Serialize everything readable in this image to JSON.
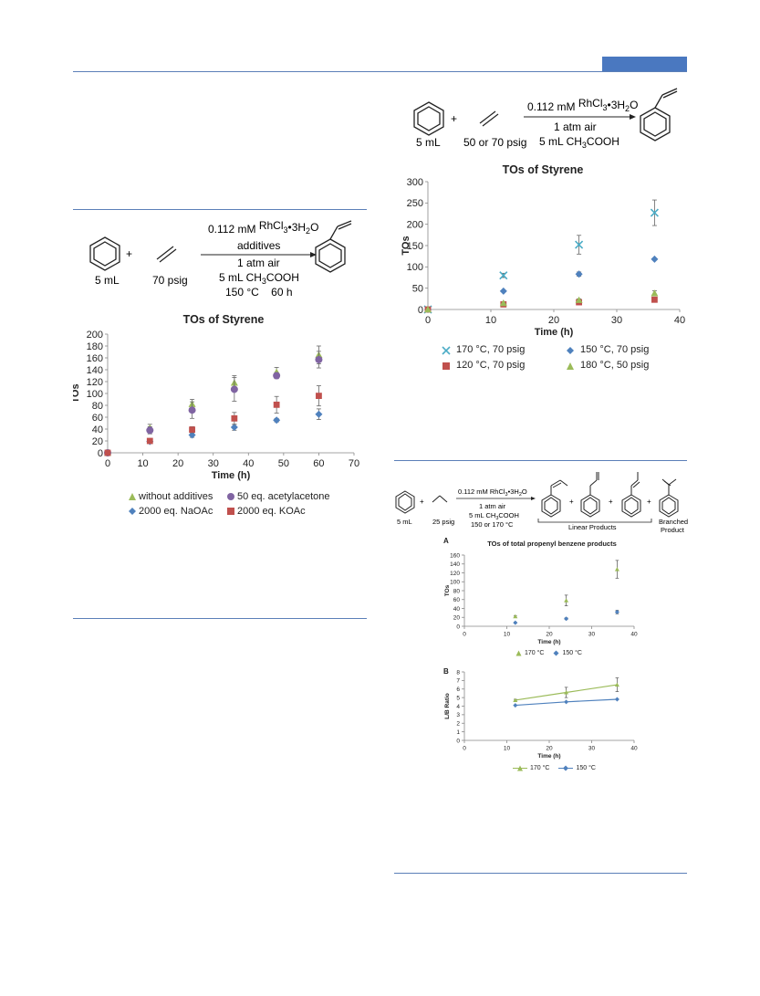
{
  "colors": {
    "rule": "#5b7fb8",
    "header_block": "#4a78c0"
  },
  "scheme_left": {
    "benzene_amount": "5 mL",
    "ethylene_amount": "70 psig",
    "plus": "+",
    "cond_catalyst_prefix": "0.112 mM ",
    "cond_catalyst_rh": "RhCl",
    "cond_catalyst_sub3": "3",
    "cond_catalyst_mid": "•3H",
    "cond_catalyst_sub2": "2",
    "cond_catalyst_o": "O",
    "cond_line2": "additives",
    "cond_line3": "1 atm air",
    "cond_line4_prefix": "5 mL CH",
    "cond_line4_sub": "3",
    "cond_line4_suffix": "COOH",
    "cond_line5": "150 °C    60 h"
  },
  "scheme_right": {
    "benzene_amount": "5 mL",
    "ethylene_amount": "50 or 70 psig",
    "plus": "+",
    "cond_catalyst_prefix": "0.112 mM ",
    "cond_catalyst_rh": "RhCl",
    "cond_catalyst_sub3": "3",
    "cond_catalyst_mid": "•3H",
    "cond_catalyst_sub2": "2",
    "cond_catalyst_o": "O",
    "cond_line2": "1 atm air",
    "cond_line3_prefix": "5 mL CH",
    "cond_line3_sub": "3",
    "cond_line3_suffix": "COOH"
  },
  "scheme_bottom": {
    "benzene_amount": "5 mL",
    "propylene_amount": "25 psig",
    "plus": "+",
    "cond_catalyst": "0.112 mM RhCl",
    "cond_catalyst_sub3": "3",
    "cond_catalyst_mid": "•3H",
    "cond_catalyst_sub2": "2",
    "cond_catalyst_o": "O",
    "cond_line2": "1 atm air",
    "cond_line3": "5 mL CH",
    "cond_line3_sub": "3",
    "cond_line3_suffix": "COOH",
    "cond_line4": "150 or 170 °C",
    "linear_label": "Linear Products",
    "branched_label_1": "Branched",
    "branched_label_2": "Product",
    "panel_a": "A",
    "panel_b": "B"
  },
  "chart_data": [
    {
      "id": "left",
      "type": "scatter",
      "title": "TOs of Styrene",
      "xlabel": "Time (h)",
      "ylabel": "TOs",
      "xlim": [
        0,
        70
      ],
      "ylim": [
        0,
        200
      ],
      "xticks": [
        0,
        10,
        20,
        30,
        40,
        50,
        60,
        70
      ],
      "yticks": [
        0,
        20,
        40,
        60,
        80,
        100,
        120,
        140,
        160,
        180,
        200
      ],
      "legend_position": "bottom",
      "series": [
        {
          "name": "without additives",
          "marker": "triangle",
          "color": "#9bbb59",
          "x": [
            0,
            12,
            24,
            36,
            48,
            60
          ],
          "y": [
            0,
            42,
            82,
            118,
            136,
            165
          ],
          "err": [
            0,
            6,
            8,
            12,
            8,
            15
          ]
        },
        {
          "name": "50 eq. acetylacetone",
          "marker": "circle",
          "color": "#8064a2",
          "x": [
            0,
            12,
            24,
            36,
            48,
            60
          ],
          "y": [
            0,
            38,
            72,
            107,
            130,
            157
          ],
          "err": [
            0,
            6,
            14,
            20,
            5,
            14
          ]
        },
        {
          "name": "2000 eq. NaOAc",
          "marker": "diamond",
          "color": "#4f81bd",
          "x": [
            0,
            12,
            24,
            36,
            48,
            60
          ],
          "y": [
            0,
            19,
            30,
            43,
            55,
            65
          ],
          "err": [
            0,
            3,
            4,
            5,
            3,
            9
          ]
        },
        {
          "name": "2000 eq. KOAc",
          "marker": "square",
          "color": "#c0504d",
          "x": [
            0,
            12,
            24,
            36,
            48,
            60
          ],
          "y": [
            0,
            20,
            39,
            58,
            81,
            96
          ],
          "err": [
            0,
            3,
            5,
            10,
            14,
            17
          ]
        }
      ]
    },
    {
      "id": "right",
      "type": "scatter",
      "title": "TOs of Styrene",
      "xlabel": "Time (h)",
      "ylabel": "TOs",
      "xlim": [
        0,
        40
      ],
      "ylim": [
        0,
        300
      ],
      "xticks": [
        0,
        10,
        20,
        30,
        40
      ],
      "yticks": [
        0,
        50,
        100,
        150,
        200,
        250,
        300
      ],
      "legend_position": "bottom",
      "series": [
        {
          "name": "170 °C, 70 psig",
          "marker": "x",
          "color": "#4bacc6",
          "x": [
            0,
            12,
            24,
            36
          ],
          "y": [
            0,
            80,
            152,
            227
          ],
          "err": [
            0,
            5,
            22,
            30
          ]
        },
        {
          "name": "150 °C, 70 psig",
          "marker": "diamond",
          "color": "#4f81bd",
          "x": [
            0,
            12,
            24,
            36
          ],
          "y": [
            0,
            43,
            83,
            118
          ],
          "err": [
            0,
            0,
            5,
            0
          ]
        },
        {
          "name": "120 °C, 70 psig",
          "marker": "square",
          "color": "#c0504d",
          "x": [
            0,
            12,
            24,
            36
          ],
          "y": [
            0,
            12,
            17,
            23
          ],
          "err": [
            0,
            0,
            3,
            4
          ]
        },
        {
          "name": "180 °C, 50 psig",
          "marker": "triangle",
          "color": "#9bbb59",
          "x": [
            0,
            12,
            24,
            36
          ],
          "y": [
            0,
            15,
            22,
            38
          ],
          "err": [
            0,
            0,
            3,
            6
          ]
        }
      ]
    },
    {
      "id": "panelA",
      "type": "scatter",
      "title": "TOs of total propenyl benzene products",
      "xlabel": "Time (h)",
      "ylabel": "TOs",
      "xlim": [
        0,
        40
      ],
      "ylim": [
        0,
        160
      ],
      "xticks": [
        0,
        10,
        20,
        30,
        40
      ],
      "yticks": [
        0,
        20,
        40,
        60,
        80,
        100,
        120,
        140,
        160
      ],
      "legend_position": "bottom",
      "series": [
        {
          "name": "170 °C",
          "marker": "triangle",
          "color": "#9bbb59",
          "x": [
            12,
            24,
            36
          ],
          "y": [
            22,
            58,
            128
          ],
          "err": [
            2,
            12,
            20
          ]
        },
        {
          "name": "150 °C",
          "marker": "diamond",
          "color": "#4f81bd",
          "x": [
            12,
            24,
            36
          ],
          "y": [
            8,
            17,
            32
          ],
          "err": [
            1,
            2,
            4
          ]
        }
      ]
    },
    {
      "id": "panelB",
      "type": "line",
      "title": "",
      "xlabel": "Time (h)",
      "ylabel": "L/B Ratio",
      "xlim": [
        0,
        40
      ],
      "ylim": [
        0,
        8
      ],
      "xticks": [
        0,
        10,
        20,
        30,
        40
      ],
      "yticks": [
        0,
        1,
        2,
        3,
        4,
        5,
        6,
        7,
        8
      ],
      "legend_position": "bottom",
      "series": [
        {
          "name": "170 °C",
          "marker": "triangle",
          "color": "#9bbb59",
          "x": [
            12,
            24,
            36
          ],
          "y": [
            4.7,
            5.6,
            6.5
          ],
          "err": [
            0.1,
            0.6,
            0.8
          ]
        },
        {
          "name": "150 °C",
          "marker": "diamond",
          "color": "#4f81bd",
          "x": [
            12,
            24,
            36
          ],
          "y": [
            4.1,
            4.5,
            4.8
          ],
          "err": [
            0,
            0,
            0
          ]
        }
      ]
    }
  ]
}
